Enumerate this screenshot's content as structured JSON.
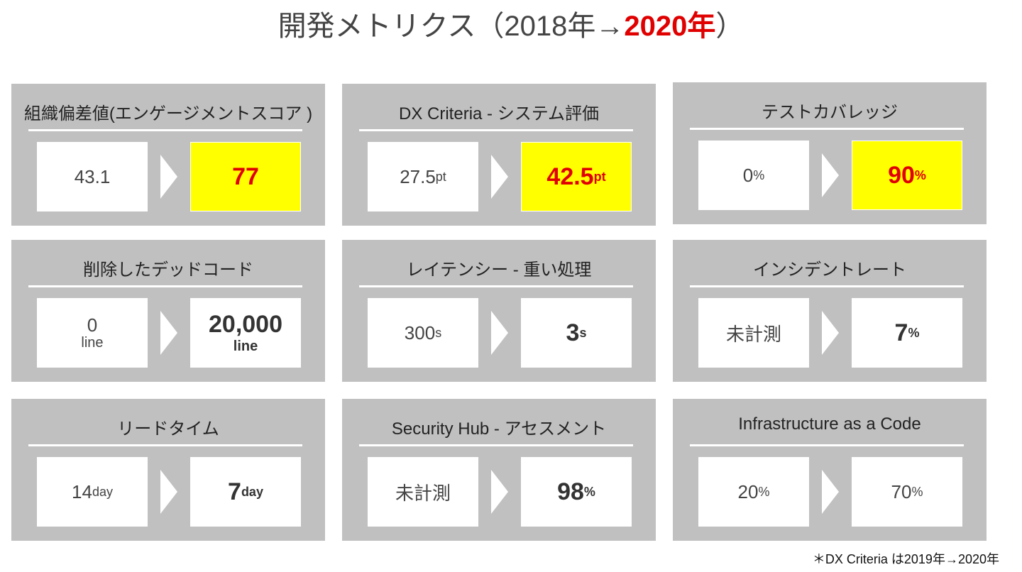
{
  "title": {
    "prefix": "開発メトリクス（2018年→",
    "highlight": "2020年",
    "suffix": "）"
  },
  "cards": [
    {
      "title": "組織偏差値(エンゲージメントスコア )",
      "before": {
        "value": "43.1",
        "unit": ""
      },
      "after": {
        "value": "77",
        "unit": ""
      },
      "style": "hl"
    },
    {
      "title": "DX Criteria - システム評価",
      "before": {
        "value": "27.5",
        "unit": "pt"
      },
      "after": {
        "value": "42.5",
        "unit": "pt"
      },
      "style": "hl"
    },
    {
      "title": "テストカバレッジ",
      "before": {
        "value": "0",
        "unit": "%"
      },
      "after": {
        "value": "90",
        "unit": "%"
      },
      "style": "hl"
    },
    {
      "title": "削除したデッドコード",
      "before": {
        "value": "0",
        "unit": "line"
      },
      "after": {
        "value": "20,000",
        "unit": "line"
      },
      "style": "bold",
      "stack": true
    },
    {
      "title": "レイテンシー - 重い処理",
      "before": {
        "value": "300",
        "unit": "s"
      },
      "after": {
        "value": "3",
        "unit": "s"
      },
      "style": "bold"
    },
    {
      "title": "インシデントレート",
      "before": {
        "value": "未計測",
        "unit": ""
      },
      "after": {
        "value": "7",
        "unit": "%"
      },
      "style": "bold"
    },
    {
      "title": "リードタイム",
      "before": {
        "value": "14",
        "unit": "day"
      },
      "after": {
        "value": "7",
        "unit": "day"
      },
      "style": "bold"
    },
    {
      "title": "Security Hub - アセスメント",
      "before": {
        "value": "未計測",
        "unit": ""
      },
      "after": {
        "value": "98",
        "unit": "%"
      },
      "style": "bold"
    },
    {
      "title": "Infrastructure as a Code",
      "before": {
        "value": "20",
        "unit": "%"
      },
      "after": {
        "value": "70",
        "unit": "%"
      },
      "style": "normal"
    }
  ],
  "note": "＊DX Criteria は2019年→2020年",
  "colors": {
    "highlight_bg": "#ffff00",
    "highlight_text": "#e00000",
    "card_bg": "#c0c0c0"
  }
}
